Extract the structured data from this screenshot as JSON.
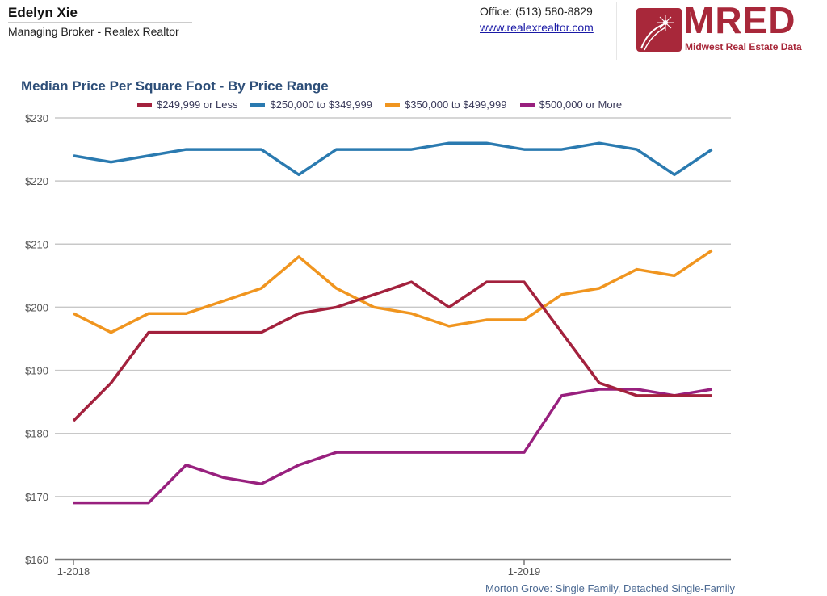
{
  "header": {
    "agent_name": "Edelyn Xie",
    "agent_title": "Managing Broker - Realex Realtor",
    "office": "Office: (513) 580-8829",
    "website": "www.realexrealtor.com",
    "logo_text": "MRED",
    "logo_subtitle": "Midwest Real Estate Data"
  },
  "footer": "Morton Grove: Single Family, Detached Single-Family",
  "chart_data": {
    "type": "line",
    "title": "Median Price Per Square Foot - By Price Range",
    "xlabel": "",
    "ylabel": "",
    "ylim": [
      160,
      230
    ],
    "yticks": [
      "$160",
      "$170",
      "$180",
      "$190",
      "$200",
      "$210",
      "$220",
      "$230"
    ],
    "ytick_values": [
      160,
      170,
      180,
      190,
      200,
      210,
      220,
      230
    ],
    "x": [
      "1-2018",
      "2-2018",
      "3-2018",
      "4-2018",
      "5-2018",
      "6-2018",
      "7-2018",
      "8-2018",
      "9-2018",
      "10-2018",
      "11-2018",
      "12-2018",
      "1-2019",
      "2-2019",
      "3-2019",
      "4-2019",
      "5-2019",
      "6-2019"
    ],
    "xtick_labels": [
      {
        "index": 0,
        "label": "1-2018"
      },
      {
        "index": 12,
        "label": "1-2019"
      }
    ],
    "grid": true,
    "legend_placement": "top",
    "series": [
      {
        "name": "$249,999 or Less",
        "color": "#a3213d",
        "values": [
          182,
          188,
          196,
          196,
          196,
          196,
          199,
          200,
          202,
          204,
          200,
          204,
          204,
          196,
          188,
          186,
          186,
          186
        ]
      },
      {
        "name": "$250,000 to $349,999",
        "color": "#2a7ab0",
        "values": [
          224,
          223,
          224,
          225,
          225,
          225,
          221,
          225,
          225,
          225,
          226,
          226,
          225,
          225,
          226,
          225,
          221,
          225
        ]
      },
      {
        "name": "$350,000 to $499,999",
        "color": "#f0951f",
        "values": [
          199,
          196,
          199,
          199,
          201,
          203,
          208,
          203,
          200,
          199,
          197,
          198,
          198,
          202,
          203,
          206,
          205,
          209
        ]
      },
      {
        "name": "$500,000 or More",
        "color": "#98207e",
        "values": [
          169,
          169,
          169,
          175,
          173,
          172,
          175,
          177,
          177,
          177,
          177,
          177,
          177,
          186,
          187,
          187,
          186,
          187
        ]
      }
    ]
  }
}
